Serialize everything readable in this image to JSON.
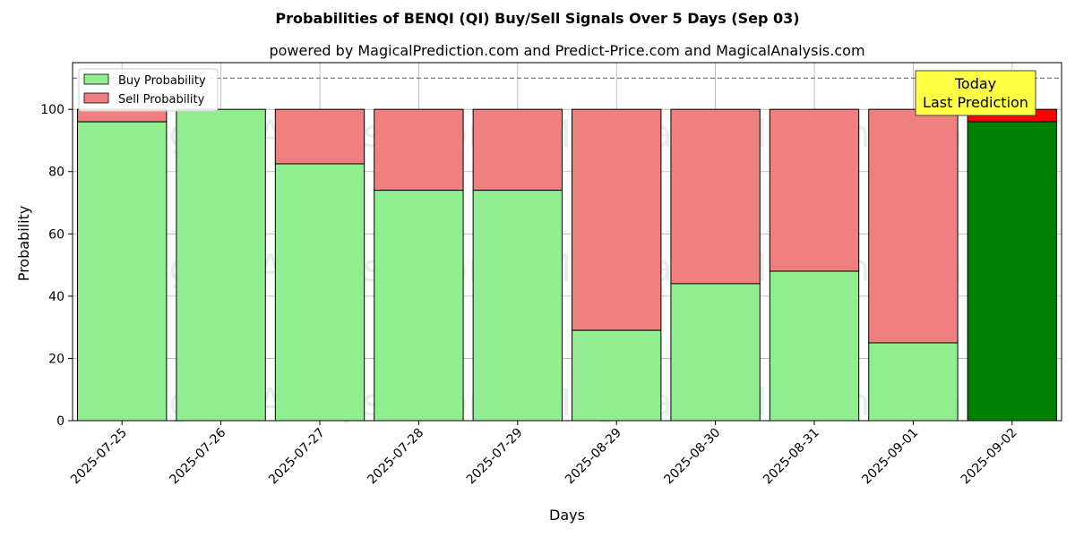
{
  "chart_data": {
    "type": "bar",
    "stacked": true,
    "title": "Probabilities of BENQI (QI) Buy/Sell Signals Over 5 Days (Sep 03)",
    "subtitle": "powered by MagicalPrediction.com and Predict-Price.com and MagicalAnalysis.com",
    "xlabel": "Days",
    "ylabel": "Probability",
    "ylim": [
      0,
      115
    ],
    "yticks": [
      0,
      20,
      40,
      60,
      80,
      100
    ],
    "grid": true,
    "reference_line": 110,
    "categories": [
      "2025-07-25",
      "2025-07-26",
      "2025-07-27",
      "2025-07-28",
      "2025-07-29",
      "2025-08-29",
      "2025-08-30",
      "2025-08-31",
      "2025-09-01",
      "2025-09-02"
    ],
    "series": [
      {
        "name": "Buy Probability",
        "values": [
          96,
          100,
          82.5,
          74,
          74,
          29,
          44,
          48,
          25,
          96
        ],
        "color": "#90ee90",
        "highlight_color": "#008000"
      },
      {
        "name": "Sell Probability",
        "values": [
          4,
          0,
          17.5,
          26,
          26,
          71,
          56,
          52,
          75,
          4
        ],
        "color": "#f08080",
        "highlight_color": "#ff0000"
      }
    ],
    "highlight_index": 9,
    "legend_position": "top-left",
    "annotation": {
      "line1": "Today",
      "line2": "Last Prediction",
      "color": "#ffff44"
    },
    "watermarks": [
      "MagicalAnalysis.com",
      "MagicalPrediction.com"
    ]
  }
}
